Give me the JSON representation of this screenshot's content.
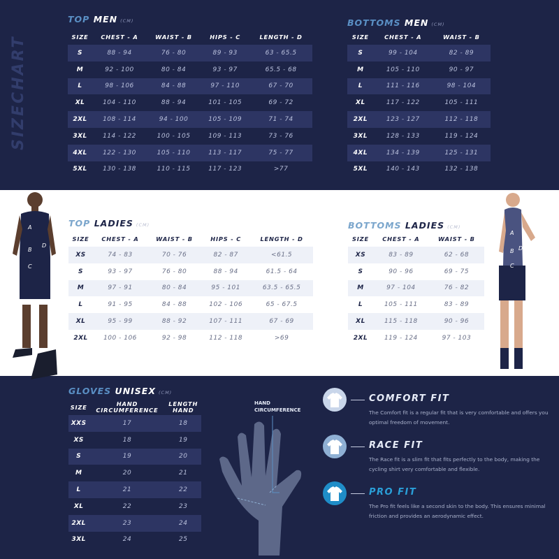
{
  "side_title": "SIZECHART",
  "top_men": {
    "title_a": "TOP",
    "title_b": "MEN",
    "unit": "(CM)",
    "headers": [
      "SIZE",
      "CHEST - A",
      "WAIST - B",
      "HIPS - C",
      "LENGTH  - D"
    ],
    "rows": [
      [
        "S",
        "88 - 94",
        "76 - 80",
        "89 - 93",
        "63 - 65.5"
      ],
      [
        "M",
        "92 - 100",
        "80 - 84",
        "93 - 97",
        "65.5 - 68"
      ],
      [
        "L",
        "98 - 106",
        "84 - 88",
        "97 - 110",
        "67 - 70"
      ],
      [
        "XL",
        "104 - 110",
        "88 - 94",
        "101 - 105",
        "69 - 72"
      ],
      [
        "2XL",
        "108 - 114",
        "94 - 100",
        "105 - 109",
        "71 - 74"
      ],
      [
        "3XL",
        "114 - 122",
        "100 - 105",
        "109 - 113",
        "73 - 76"
      ],
      [
        "4XL",
        "122 - 130",
        "105 - 110",
        "113 - 117",
        "75 - 77"
      ],
      [
        "5XL",
        "130 - 138",
        "110 - 115",
        "117 - 123",
        ">77"
      ]
    ]
  },
  "bottoms_men": {
    "title_a": "BOTTOMS",
    "title_b": "MEN",
    "unit": "(CM)",
    "headers": [
      "SIZE",
      "CHEST - A",
      "WAIST - B"
    ],
    "rows": [
      [
        "S",
        "99 - 104",
        "82 - 89"
      ],
      [
        "M",
        "105 - 110",
        "90 - 97"
      ],
      [
        "L",
        "111 - 116",
        "98 - 104"
      ],
      [
        "XL",
        "117 - 122",
        "105 - 111"
      ],
      [
        "2XL",
        "123 - 127",
        "112 - 118"
      ],
      [
        "3XL",
        "128 - 133",
        "119 - 124"
      ],
      [
        "4XL",
        "134 - 139",
        "125 - 131"
      ],
      [
        "5XL",
        "140 - 143",
        "132 - 138"
      ]
    ]
  },
  "top_ladies": {
    "title_a": "TOP",
    "title_b": "LADIES",
    "unit": "(CM)",
    "headers": [
      "SIZE",
      "CHEST - A",
      "WAIST - B",
      "HIPS - C",
      "LENGTH  - D"
    ],
    "rows": [
      [
        "XS",
        "74 - 83",
        "70 - 76",
        "82 - 87",
        "<61.5"
      ],
      [
        "S",
        "93 - 97",
        "76 - 80",
        "88 - 94",
        "61.5 - 64"
      ],
      [
        "M",
        "97 - 91",
        "80 - 84",
        "95 - 101",
        "63.5 - 65.5"
      ],
      [
        "L",
        "91 - 95",
        "84 - 88",
        "102 - 106",
        "65 - 67.5"
      ],
      [
        "XL",
        "95 - 99",
        "88 - 92",
        "107 - 111",
        "67 - 69"
      ],
      [
        "2XL",
        "100 - 106",
        "92 - 98",
        "112 - 118",
        ">69"
      ]
    ]
  },
  "bottoms_ladies": {
    "title_a": "BOTTOMS",
    "title_b": "LADIES",
    "unit": "(CM)",
    "headers": [
      "SIZE",
      "CHEST - A",
      "WAIST - B"
    ],
    "rows": [
      [
        "XS",
        "83 - 89",
        "62 - 68"
      ],
      [
        "S",
        "90 - 96",
        "69 - 75"
      ],
      [
        "M",
        "97 - 104",
        "76 - 82"
      ],
      [
        "L",
        "105 - 111",
        "83 - 89"
      ],
      [
        "XL",
        "115 - 118",
        "90 - 96"
      ],
      [
        "2XL",
        "119 - 124",
        "97 - 103"
      ]
    ]
  },
  "gloves": {
    "title_a": "GLOVES",
    "title_b": "UNISEX",
    "unit": "(CM)",
    "headers": [
      "SIZE",
      "HAND\nCIRCUMFERENCE",
      "LENGTH\nHAND"
    ],
    "rows": [
      [
        "XXS",
        "17",
        "18"
      ],
      [
        "XS",
        "18",
        "19"
      ],
      [
        "S",
        "19",
        "20"
      ],
      [
        "M",
        "20",
        "21"
      ],
      [
        "L",
        "21",
        "22"
      ],
      [
        "XL",
        "22",
        "23"
      ],
      [
        "2XL",
        "23",
        "24"
      ],
      [
        "3XL",
        "24",
        "25"
      ]
    ],
    "hand_label_1": "HAND",
    "hand_label_2": "CIRCUMFERENCE"
  },
  "figure_labels": [
    "A",
    "B",
    "C",
    "D"
  ],
  "fits": [
    {
      "title": "COMFORT FIT",
      "desc": "The Comfort fit is a regular fit that is very comfortable and offers you optimal freedom of movement.",
      "icon": "comfort-shirt-icon",
      "color": "#c9d6ea"
    },
    {
      "title": "RACE FIT",
      "desc": "The Race fit is a slim fit that fits perfectly to the body, making the cycling shirt very comfortable and flexible.",
      "icon": "race-shirt-icon",
      "color": "#8fb0d4"
    },
    {
      "title": "PRO FIT",
      "desc": "The Pro fit feels like a second skin to the body. This ensures minimal friction and provides an aerodynamic effect.",
      "icon": "pro-shirt-icon",
      "color": "#1f8dc8"
    }
  ],
  "colors": {
    "navy": "#1d2447",
    "stripe_dark": "#2d3563",
    "stripe_light": "#eef1f8",
    "accent": "#5a8fc4",
    "pro_accent": "#2a9fd8"
  }
}
